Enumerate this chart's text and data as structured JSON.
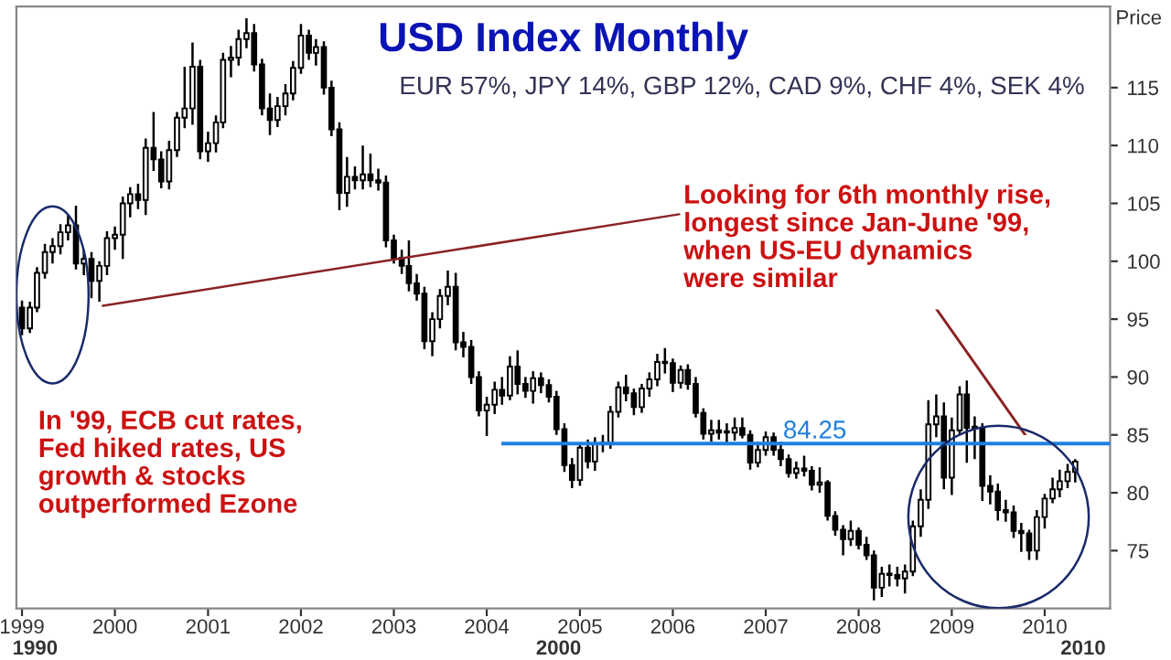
{
  "chart_data": {
    "type": "candlestick",
    "title": "USD Index Monthly",
    "subtitle": "EUR 57%, JPY 14%, GBP 12%, CAD 9%, CHF 4%, SEK 4%",
    "ylabel": "Price",
    "x": [
      "1999-01",
      "1999-02",
      "1999-03",
      "1999-04",
      "1999-05",
      "1999-06",
      "1999-07",
      "1999-08",
      "1999-09",
      "1999-10",
      "1999-11",
      "1999-12",
      "2000-01",
      "2000-02",
      "2000-03",
      "2000-04",
      "2000-05",
      "2000-06",
      "2000-07",
      "2000-08",
      "2000-09",
      "2000-10",
      "2000-11",
      "2000-12",
      "2001-01",
      "2001-02",
      "2001-03",
      "2001-04",
      "2001-05",
      "2001-06",
      "2001-07",
      "2001-08",
      "2001-09",
      "2001-10",
      "2001-11",
      "2001-12",
      "2002-01",
      "2002-02",
      "2002-03",
      "2002-04",
      "2002-05",
      "2002-06",
      "2002-07",
      "2002-08",
      "2002-09",
      "2002-10",
      "2002-11",
      "2002-12",
      "2003-01",
      "2003-02",
      "2003-03",
      "2003-04",
      "2003-05",
      "2003-06",
      "2003-07",
      "2003-08",
      "2003-09",
      "2003-10",
      "2003-11",
      "2003-12",
      "2004-01",
      "2004-02",
      "2004-03",
      "2004-04",
      "2004-05",
      "2004-06",
      "2004-07",
      "2004-08",
      "2004-09",
      "2004-10",
      "2004-11",
      "2004-12",
      "2005-01",
      "2005-02",
      "2005-03",
      "2005-04",
      "2005-05",
      "2005-06",
      "2005-07",
      "2005-08",
      "2005-09",
      "2005-10",
      "2005-11",
      "2005-12",
      "2006-01",
      "2006-02",
      "2006-03",
      "2006-04",
      "2006-05",
      "2006-06",
      "2006-07",
      "2006-08",
      "2006-09",
      "2006-10",
      "2006-11",
      "2006-12",
      "2007-01",
      "2007-02",
      "2007-03",
      "2007-04",
      "2007-05",
      "2007-06",
      "2007-07",
      "2007-08",
      "2007-09",
      "2007-10",
      "2007-11",
      "2007-12",
      "2008-01",
      "2008-02",
      "2008-03",
      "2008-04",
      "2008-05",
      "2008-06",
      "2008-07",
      "2008-08",
      "2008-09",
      "2008-10",
      "2008-11",
      "2008-12",
      "2009-01",
      "2009-02",
      "2009-03",
      "2009-04",
      "2009-05",
      "2009-06",
      "2009-07",
      "2009-08",
      "2009-09",
      "2009-10",
      "2009-11",
      "2009-12",
      "2010-01",
      "2010-02",
      "2010-03",
      "2010-04",
      "2010-05"
    ],
    "series": [
      {
        "color": "#000000",
        "ohlc": [
          [
            96.0,
            96.6,
            93.6,
            94.2
          ],
          [
            94.2,
            96.5,
            93.8,
            96.0
          ],
          [
            96.0,
            99.5,
            95.6,
            99.0
          ],
          [
            99.0,
            101.5,
            98.5,
            100.8
          ],
          [
            100.8,
            102.0,
            99.8,
            101.3
          ],
          [
            101.3,
            103.2,
            100.6,
            102.5
          ],
          [
            102.5,
            104.0,
            101.8,
            103.1
          ],
          [
            103.1,
            104.8,
            99.3,
            99.8
          ],
          [
            99.8,
            101.0,
            98.8,
            100.2
          ],
          [
            100.2,
            100.8,
            96.8,
            98.3
          ],
          [
            98.3,
            100.0,
            96.5,
            99.6
          ],
          [
            99.6,
            102.6,
            98.8,
            102.0
          ],
          [
            102.0,
            103.0,
            101.0,
            102.3
          ],
          [
            102.3,
            105.6,
            100.2,
            105.0
          ],
          [
            105.0,
            106.4,
            103.8,
            105.8
          ],
          [
            105.8,
            106.7,
            104.5,
            105.3
          ],
          [
            105.3,
            110.6,
            104.0,
            109.8
          ],
          [
            109.8,
            112.9,
            107.8,
            108.8
          ],
          [
            108.8,
            109.5,
            106.3,
            106.9
          ],
          [
            106.9,
            110.4,
            106.2,
            109.6
          ],
          [
            109.6,
            112.9,
            109.0,
            112.4
          ],
          [
            112.4,
            116.8,
            111.5,
            113.2
          ],
          [
            113.2,
            118.9,
            111.8,
            116.8
          ],
          [
            116.8,
            117.4,
            108.8,
            109.5
          ],
          [
            109.5,
            111.2,
            108.6,
            110.2
          ],
          [
            110.2,
            112.6,
            109.4,
            112.0
          ],
          [
            112.0,
            118.0,
            111.5,
            117.4
          ],
          [
            117.4,
            118.6,
            115.9,
            117.6
          ],
          [
            117.6,
            120.0,
            116.9,
            119.2
          ],
          [
            119.2,
            121.0,
            118.4,
            119.7
          ],
          [
            119.7,
            120.5,
            116.4,
            117.0
          ],
          [
            117.0,
            117.5,
            112.6,
            113.2
          ],
          [
            113.2,
            114.5,
            110.9,
            112.2
          ],
          [
            112.2,
            114.2,
            111.6,
            113.4
          ],
          [
            113.4,
            115.3,
            112.6,
            114.5
          ],
          [
            114.5,
            117.3,
            113.9,
            116.7
          ],
          [
            116.7,
            120.5,
            116.2,
            119.5
          ],
          [
            119.5,
            120.0,
            117.4,
            118.0
          ],
          [
            118.0,
            119.2,
            116.9,
            118.5
          ],
          [
            118.5,
            119.0,
            114.4,
            115.0
          ],
          [
            115.0,
            115.6,
            110.8,
            111.4
          ],
          [
            111.4,
            112.0,
            104.4,
            105.9
          ],
          [
            105.9,
            109.0,
            104.7,
            107.3
          ],
          [
            107.3,
            108.2,
            106.2,
            107.0
          ],
          [
            107.0,
            110.0,
            106.2,
            107.5
          ],
          [
            107.5,
            109.3,
            106.4,
            107.0
          ],
          [
            107.0,
            108.0,
            106.1,
            106.8
          ],
          [
            106.8,
            107.4,
            101.2,
            101.8
          ],
          [
            101.8,
            102.3,
            99.8,
            100.3
          ],
          [
            100.3,
            101.0,
            98.9,
            99.6
          ],
          [
            99.6,
            101.8,
            97.4,
            98.1
          ],
          [
            98.1,
            98.9,
            96.6,
            97.2
          ],
          [
            97.2,
            97.8,
            92.4,
            93.1
          ],
          [
            93.1,
            95.6,
            91.8,
            95.0
          ],
          [
            95.0,
            97.6,
            94.2,
            97.0
          ],
          [
            97.0,
            99.2,
            96.2,
            97.8
          ],
          [
            97.8,
            99.0,
            92.3,
            93.0
          ],
          [
            93.0,
            93.9,
            91.7,
            92.6
          ],
          [
            92.6,
            93.2,
            89.4,
            90.0
          ],
          [
            90.0,
            90.5,
            86.6,
            87.1
          ],
          [
            87.1,
            88.3,
            84.9,
            87.6
          ],
          [
            87.6,
            89.6,
            86.8,
            88.9
          ],
          [
            88.9,
            90.0,
            87.6,
            88.4
          ],
          [
            88.4,
            91.8,
            88.0,
            90.9
          ],
          [
            90.9,
            92.3,
            88.5,
            89.4
          ],
          [
            89.4,
            90.0,
            88.2,
            88.8
          ],
          [
            88.8,
            90.5,
            87.7,
            89.9
          ],
          [
            89.9,
            90.4,
            88.6,
            89.3
          ],
          [
            89.3,
            89.8,
            87.8,
            88.3
          ],
          [
            88.3,
            88.8,
            85.0,
            85.5
          ],
          [
            85.5,
            86.0,
            81.8,
            82.4
          ],
          [
            82.4,
            83.0,
            80.4,
            81.1
          ],
          [
            81.1,
            84.3,
            80.6,
            83.9
          ],
          [
            83.9,
            84.6,
            82.1,
            82.7
          ],
          [
            82.7,
            84.8,
            81.9,
            84.2
          ],
          [
            84.2,
            85.0,
            83.5,
            84.3
          ],
          [
            84.3,
            87.5,
            83.8,
            87.0
          ],
          [
            87.0,
            89.6,
            86.5,
            89.1
          ],
          [
            89.1,
            90.2,
            87.9,
            88.6
          ],
          [
            88.6,
            89.0,
            86.7,
            87.4
          ],
          [
            87.4,
            89.4,
            86.9,
            89.0
          ],
          [
            89.0,
            90.4,
            88.3,
            89.8
          ],
          [
            89.8,
            92.0,
            89.2,
            91.3
          ],
          [
            91.3,
            92.5,
            90.3,
            91.2
          ],
          [
            91.2,
            91.6,
            88.7,
            89.5
          ],
          [
            89.5,
            91.0,
            89.0,
            90.6
          ],
          [
            90.6,
            91.1,
            88.9,
            89.4
          ],
          [
            89.4,
            90.0,
            86.5,
            86.9
          ],
          [
            86.9,
            87.3,
            84.6,
            85.1
          ],
          [
            85.1,
            86.3,
            84.4,
            85.4
          ],
          [
            85.4,
            86.3,
            84.6,
            85.2
          ],
          [
            85.2,
            86.0,
            84.3,
            85.2
          ],
          [
            85.2,
            86.5,
            84.5,
            85.6
          ],
          [
            85.6,
            86.5,
            84.7,
            85.0
          ],
          [
            85.0,
            85.4,
            82.0,
            82.6
          ],
          [
            82.6,
            84.4,
            82.2,
            83.7
          ],
          [
            83.7,
            85.3,
            83.2,
            84.8
          ],
          [
            84.8,
            85.2,
            83.2,
            83.7
          ],
          [
            83.7,
            84.4,
            82.3,
            82.9
          ],
          [
            82.9,
            83.3,
            81.3,
            81.7
          ],
          [
            81.7,
            82.7,
            81.2,
            82.1
          ],
          [
            82.1,
            83.2,
            81.4,
            81.9
          ],
          [
            81.9,
            82.3,
            80.2,
            80.7
          ],
          [
            80.7,
            82.2,
            80.0,
            80.9
          ],
          [
            80.9,
            81.1,
            77.6,
            78.0
          ],
          [
            78.0,
            78.4,
            76.3,
            76.8
          ],
          [
            76.8,
            77.2,
            74.6,
            76.0
          ],
          [
            76.0,
            77.6,
            75.4,
            76.7
          ],
          [
            76.7,
            77.0,
            75.1,
            75.5
          ],
          [
            75.5,
            76.2,
            74.2,
            74.6
          ],
          [
            74.6,
            75.0,
            70.7,
            71.8
          ],
          [
            71.8,
            73.6,
            71.0,
            73.0
          ],
          [
            73.0,
            73.8,
            71.9,
            72.9
          ],
          [
            72.9,
            73.6,
            71.9,
            72.6
          ],
          [
            72.6,
            73.8,
            71.3,
            73.2
          ],
          [
            73.2,
            77.6,
            72.8,
            77.1
          ],
          [
            77.1,
            80.3,
            76.2,
            79.4
          ],
          [
            79.4,
            88.0,
            78.6,
            85.9
          ],
          [
            85.9,
            88.5,
            84.8,
            86.6
          ],
          [
            86.6,
            87.8,
            80.3,
            81.3
          ],
          [
            81.3,
            86.5,
            79.8,
            85.4
          ],
          [
            85.4,
            89.2,
            85.0,
            88.5
          ],
          [
            88.5,
            89.7,
            82.6,
            85.6
          ],
          [
            85.6,
            86.6,
            82.9,
            85.6
          ],
          [
            85.6,
            86.0,
            79.3,
            80.6
          ],
          [
            80.6,
            81.5,
            79.0,
            80.1
          ],
          [
            80.1,
            80.8,
            77.6,
            78.5
          ],
          [
            78.5,
            79.4,
            77.5,
            78.3
          ],
          [
            78.3,
            78.9,
            76.1,
            76.7
          ],
          [
            76.7,
            77.4,
            74.9,
            76.5
          ],
          [
            76.5,
            76.8,
            74.2,
            75.0
          ],
          [
            75.0,
            78.5,
            74.2,
            77.9
          ],
          [
            77.9,
            79.9,
            76.9,
            79.5
          ],
          [
            79.5,
            81.3,
            79.1,
            80.3
          ],
          [
            80.3,
            82.0,
            79.6,
            81.0
          ],
          [
            81.0,
            82.5,
            80.4,
            81.8
          ],
          [
            81.8,
            82.9,
            80.9,
            82.7
          ]
        ]
      }
    ],
    "xlim": [
      "1998-12-10",
      "2010-09-15"
    ],
    "xticks": [
      {
        "value": "1999-01",
        "label": "1999"
      },
      {
        "value": "2000-01",
        "label": "2000"
      },
      {
        "value": "2001-01",
        "label": "2001"
      },
      {
        "value": "2002-01",
        "label": "2002"
      },
      {
        "value": "2003-01",
        "label": "2003"
      },
      {
        "value": "2004-01",
        "label": "2004"
      },
      {
        "value": "2005-01",
        "label": "2005"
      },
      {
        "value": "2006-01",
        "label": "2006"
      },
      {
        "value": "2007-01",
        "label": "2007"
      },
      {
        "value": "2008-01",
        "label": "2008"
      },
      {
        "value": "2009-01",
        "label": "2009"
      },
      {
        "value": "2010-01",
        "label": "2010"
      }
    ],
    "ylim": [
      70,
      122
    ],
    "yticks": [
      75,
      80,
      85,
      90,
      95,
      100,
      105,
      110,
      115
    ],
    "ref_lines": [
      {
        "axis": "y",
        "value": 84.25,
        "label": "84.25",
        "color": "#1f7fe0"
      }
    ],
    "annotations": [
      "In '99, ECB cut rates,\nFed hiked rates, US\ngrowth & stocks\noutperformed Ezone",
      "Looking for 6th monthly rise,\nlongest since Jan-June '99,\nwhen US-EU dynamics\nwere similar",
      "1990",
      "2000",
      "2010"
    ],
    "grid": false,
    "legend": false
  }
}
